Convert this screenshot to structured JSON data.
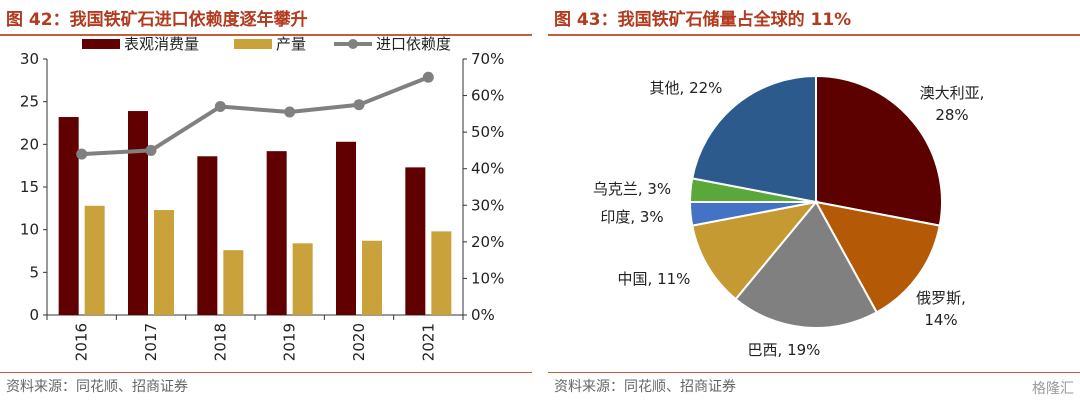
{
  "left_panel": {
    "figure_title": "图 42：我国铁矿石进口依赖度逐年攀升",
    "source": "资料来源：同花顺、招商证券"
  },
  "right_panel": {
    "figure_title": "图 43：我国铁矿石储量占全球的 11%",
    "source": "资料来源：同花顺、招商证券",
    "watermark": "格隆汇"
  },
  "colors": {
    "title": "#b23a1e",
    "rule": "#c0603a",
    "bar_primary": "#600000",
    "bar_secondary": "#c9a23c",
    "line": "#808080"
  },
  "chart_data": [
    {
      "type": "bar",
      "categories": [
        "2016",
        "2017",
        "2018",
        "2019",
        "2020",
        "2021"
      ],
      "series": [
        {
          "name": "表观消费量",
          "values": [
            23.2,
            23.9,
            18.6,
            19.2,
            20.3,
            17.3
          ],
          "axis": "left",
          "kind": "bar",
          "color": "#600000"
        },
        {
          "name": "产量",
          "values": [
            12.8,
            12.3,
            7.6,
            8.4,
            8.7,
            9.8
          ],
          "axis": "left",
          "kind": "bar",
          "color": "#c9a23c"
        },
        {
          "name": "进口依赖度",
          "values": [
            44,
            45,
            57,
            55.5,
            57.5,
            65
          ],
          "axis": "right",
          "kind": "line",
          "color": "#808080"
        }
      ],
      "ylim": [
        0,
        30
      ],
      "yticks": [
        "0",
        "5",
        "10",
        "15",
        "20",
        "25",
        "30"
      ],
      "y2lim": [
        0,
        70
      ],
      "y2ticks": [
        "0%",
        "10%",
        "20%",
        "30%",
        "40%",
        "50%",
        "60%",
        "70%"
      ],
      "legend_position": "top",
      "grid": false
    },
    {
      "type": "pie",
      "slices": [
        {
          "name": "澳大利亚",
          "label": "28%",
          "value": 28,
          "color": "#5c0000"
        },
        {
          "name": "俄罗斯",
          "label": "14%",
          "value": 14,
          "color": "#b45a06"
        },
        {
          "name": "巴西",
          "label": "19%",
          "value": 19,
          "color": "#808080"
        },
        {
          "name": "中国",
          "label": "11%",
          "value": 11,
          "color": "#c69a33"
        },
        {
          "name": "印度",
          "label": "3%",
          "value": 3,
          "color": "#4472c4"
        },
        {
          "name": "乌克兰",
          "label": "3%",
          "value": 3,
          "color": "#5aa83a"
        },
        {
          "name": "其他",
          "label": "22%",
          "value": 22,
          "color": "#2d5a8c"
        }
      ]
    }
  ]
}
